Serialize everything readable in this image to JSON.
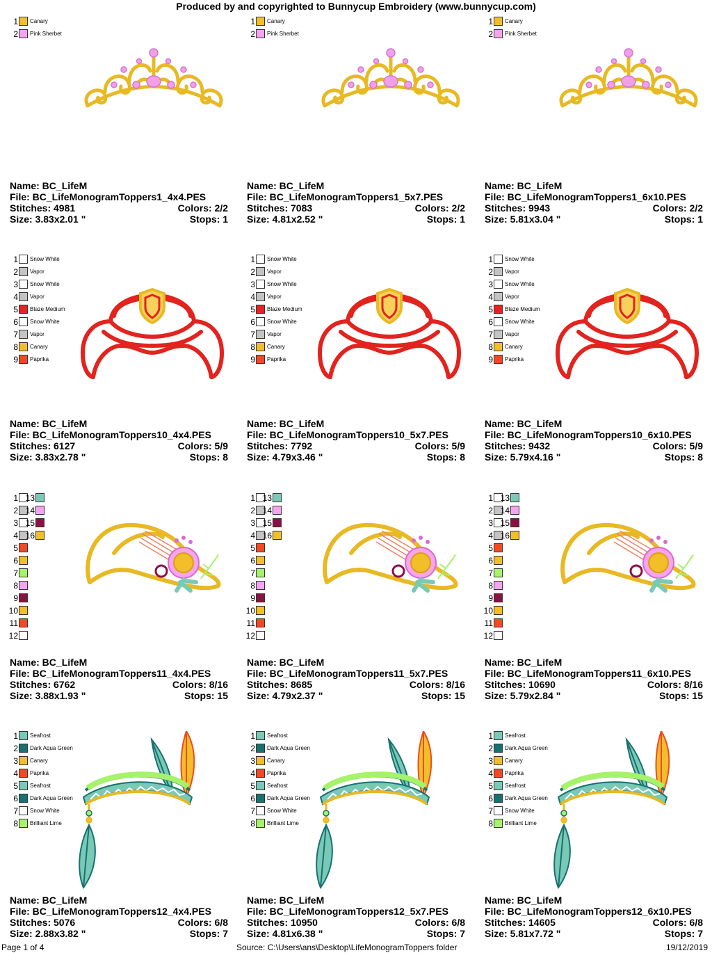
{
  "header": "Produced by and copyrighted to Bunnycup Embroidery (www.bunnycup.com)",
  "colors": {
    "Canary": "#F2BE2A",
    "Pink Sherbet": "#F7A4F0",
    "Snow White": "#FFFFFF",
    "Vapor": "#C4C4C4",
    "Blaze Medium": "#E8231F",
    "Paprika": "#F04A22",
    "Seafrost": "#79C9B7",
    "Dark Aqua Green": "#18716F",
    "Brilliant Lime": "#A6F26A",
    "Berry": "#8E0F43",
    "Pink": "#F7A4F0",
    "Lime": "#A6F26A"
  },
  "rows": [
    {
      "art": "tiara",
      "legend_style": "named",
      "legend": [
        {
          "n": "1",
          "name": "Canary"
        },
        {
          "n": "2",
          "name": "Pink Sherbet"
        }
      ],
      "designs": [
        {
          "name": "Name: BC_LifeM",
          "file": "File: BC_LifeMonogramToppers1_4x4.PES",
          "stitches": "Stitches: 4981",
          "colors": "Colors: 2/2",
          "size": "Size: 3.83x2.01 \"",
          "stops": "Stops: 1"
        },
        {
          "name": "Name: BC_LifeM",
          "file": "File: BC_LifeMonogramToppers1_5x7.PES",
          "stitches": "Stitches: 7083",
          "colors": "Colors: 2/2",
          "size": "Size: 4.81x2.52 \"",
          "stops": "Stops: 1"
        },
        {
          "name": "Name: BC_LifeM",
          "file": "File: BC_LifeMonogramToppers1_6x10.PES",
          "stitches": "Stitches: 9943",
          "colors": "Colors: 2/2",
          "size": "Size: 5.81x3.04 \"",
          "stops": "Stops: 1"
        }
      ]
    },
    {
      "art": "firehat",
      "legend_style": "named",
      "legend": [
        {
          "n": "1",
          "name": "Snow White"
        },
        {
          "n": "2",
          "name": "Vapor"
        },
        {
          "n": "3",
          "name": "Snow White"
        },
        {
          "n": "4",
          "name": "Vapor"
        },
        {
          "n": "5",
          "name": "Blaze Medium"
        },
        {
          "n": "6",
          "name": "Snow White"
        },
        {
          "n": "7",
          "name": "Vapor"
        },
        {
          "n": "8",
          "name": "Canary"
        },
        {
          "n": "9",
          "name": "Paprika"
        }
      ],
      "designs": [
        {
          "name": "Name: BC_LifeM",
          "file": "File: BC_LifeMonogramToppers10_4x4.PES",
          "stitches": "Stitches: 6127",
          "colors": "Colors: 5/9",
          "size": "Size: 3.83x2.78 \"",
          "stops": "Stops: 8"
        },
        {
          "name": "Name: BC_LifeM",
          "file": "File: BC_LifeMonogramToppers10_5x7.PES",
          "stitches": "Stitches: 7792",
          "colors": "Colors: 5/9",
          "size": "Size: 4.79x3.46 \"",
          "stops": "Stops: 8"
        },
        {
          "name": "Name: BC_LifeM",
          "file": "File: BC_LifeMonogramToppers10_6x10.PES",
          "stitches": "Stitches: 9432",
          "colors": "Colors: 5/9",
          "size": "Size: 5.79x4.16 \"",
          "stops": "Stops: 8"
        }
      ]
    },
    {
      "art": "sunhat",
      "legend_style": "numbered",
      "legend": [
        {
          "n": "1",
          "name": "Snow White"
        },
        {
          "n": "2",
          "name": "Vapor"
        },
        {
          "n": "3",
          "name": "Snow White"
        },
        {
          "n": "4",
          "name": "Vapor"
        },
        {
          "n": "5",
          "name": "Paprika"
        },
        {
          "n": "6",
          "name": "Canary"
        },
        {
          "n": "7",
          "name": "Lime"
        },
        {
          "n": "8",
          "name": "Pink"
        },
        {
          "n": "9",
          "name": "Berry"
        },
        {
          "n": "10",
          "name": "Canary"
        },
        {
          "n": "11",
          "name": "Paprika"
        },
        {
          "n": "12",
          "name": "Snow White"
        },
        {
          "n": "13",
          "name": "Seafrost"
        },
        {
          "n": "14",
          "name": "Pink"
        },
        {
          "n": "15",
          "name": "Berry"
        },
        {
          "n": "16",
          "name": "Canary"
        }
      ],
      "designs": [
        {
          "name": "Name: BC_LifeM",
          "file": "File: BC_LifeMonogramToppers11_4x4.PES",
          "stitches": "Stitches: 6762",
          "colors": "Colors: 8/16",
          "size": "Size: 3.88x1.93 \"",
          "stops": "Stops: 15"
        },
        {
          "name": "Name: BC_LifeM",
          "file": "File: BC_LifeMonogramToppers11_5x7.PES",
          "stitches": "Stitches: 8685",
          "colors": "Colors: 8/16",
          "size": "Size: 4.79x2.37 \"",
          "stops": "Stops: 15"
        },
        {
          "name": "Name: BC_LifeM",
          "file": "File: BC_LifeMonogramToppers11_6x10.PES",
          "stitches": "Stitches: 10690",
          "colors": "Colors: 8/16",
          "size": "Size: 5.79x2.84 \"",
          "stops": "Stops: 15"
        }
      ]
    },
    {
      "art": "headband",
      "legend_style": "named",
      "legend": [
        {
          "n": "1",
          "name": "Seafrost"
        },
        {
          "n": "2",
          "name": "Dark Aqua Green"
        },
        {
          "n": "3",
          "name": "Canary"
        },
        {
          "n": "4",
          "name": "Paprika"
        },
        {
          "n": "5",
          "name": "Seafrost"
        },
        {
          "n": "6",
          "name": "Dark Aqua Green"
        },
        {
          "n": "7",
          "name": "Snow White"
        },
        {
          "n": "8",
          "name": "Brilliant Lime"
        }
      ],
      "designs": [
        {
          "name": "Name: BC_LifeM",
          "file": "File: BC_LifeMonogramToppers12_4x4.PES",
          "stitches": "Stitches: 5076",
          "colors": "Colors: 6/8",
          "size": "Size: 2.88x3.82 \"",
          "stops": "Stops: 7"
        },
        {
          "name": "Name: BC_LifeM",
          "file": "File: BC_LifeMonogramToppers12_5x7.PES",
          "stitches": "Stitches: 10950",
          "colors": "Colors: 6/8",
          "size": "Size: 4.81x6.38 \"",
          "stops": "Stops: 7"
        },
        {
          "name": "Name: BC_LifeM",
          "file": "File: BC_LifeMonogramToppers12_6x10.PES",
          "stitches": "Stitches: 14605",
          "colors": "Colors: 6/8",
          "size": "Size: 5.81x7.72 \"",
          "stops": "Stops: 7"
        }
      ]
    }
  ],
  "footer": {
    "page": "Page 1 of 4",
    "source": "Source: C:\\Users\\ans\\Desktop\\LifeMonogramToppers folder",
    "date": "19/12/2019"
  }
}
